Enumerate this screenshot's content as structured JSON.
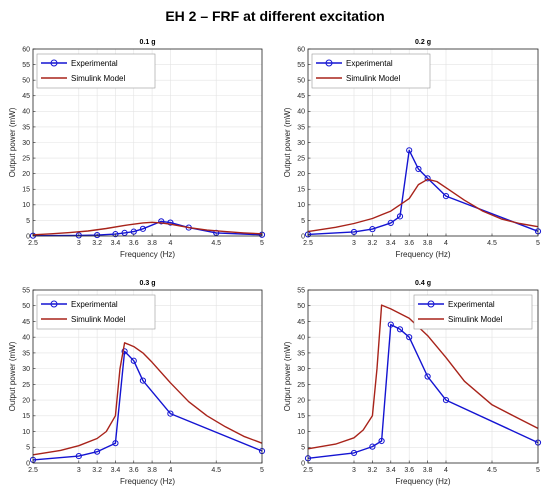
{
  "figure": {
    "title": "EH 2 – FRF at different excitation"
  },
  "colors": {
    "experimental": "#1414d2",
    "simulink": "#a8231a",
    "axis": "#262626",
    "grid": "#e3e3e3",
    "marker_fill": "#ffffff"
  },
  "chart_data": [
    {
      "type": "line",
      "title": "0.1 g",
      "xlabel": "Frequency (Hz)",
      "ylabel": "Output power (mW)",
      "xlim": [
        2.5,
        5
      ],
      "ylim": [
        0,
        60
      ],
      "x_ticks": [
        2.5,
        3,
        3.2,
        3.4,
        3.6,
        3.8,
        4,
        4.5,
        5
      ],
      "x_tick_labels": [
        "2.5",
        "3",
        "3.2",
        "3.4",
        "3.6",
        "3.8",
        "4",
        "4.5",
        "5"
      ],
      "y_ticks": [
        0,
        5,
        10,
        15,
        20,
        25,
        30,
        35,
        40,
        45,
        50,
        55,
        60
      ],
      "y_tick_labels": [
        "0",
        "5",
        "10",
        "15",
        "20",
        "25",
        "30",
        "35",
        "40",
        "45",
        "50",
        "55",
        "60"
      ],
      "grid": true,
      "legend_position": "top-left",
      "series": [
        {
          "name": "Experimental",
          "color": "#1414d2",
          "marker": "circle",
          "x": [
            2.5,
            3.0,
            3.2,
            3.4,
            3.5,
            3.6,
            3.7,
            3.9,
            4.0,
            4.2,
            4.5,
            5.0
          ],
          "y": [
            0.1,
            0.2,
            0.3,
            0.6,
            1.0,
            1.4,
            2.3,
            4.7,
            4.3,
            2.7,
            1.0,
            0.4
          ]
        },
        {
          "name": "Simulink Model",
          "color": "#a8231a",
          "marker": "none",
          "x": [
            2.5,
            2.7,
            2.9,
            3.1,
            3.3,
            3.5,
            3.7,
            3.8,
            3.9,
            4.0,
            4.2,
            4.4,
            4.6,
            4.8,
            5.0
          ],
          "y": [
            0.4,
            0.7,
            1.1,
            1.6,
            2.4,
            3.4,
            4.2,
            4.4,
            4.2,
            3.8,
            2.7,
            1.9,
            1.4,
            1.0,
            0.7
          ]
        }
      ]
    },
    {
      "type": "line",
      "title": "0.2 g",
      "xlabel": "Frequency (Hz)",
      "ylabel": "Output power (mW)",
      "xlim": [
        2.5,
        5
      ],
      "ylim": [
        0,
        60
      ],
      "x_ticks": [
        2.5,
        3,
        3.2,
        3.4,
        3.6,
        3.8,
        4,
        4.5,
        5
      ],
      "x_tick_labels": [
        "2.5",
        "3",
        "3.2",
        "3.4",
        "3.6",
        "3.8",
        "4",
        "4.5",
        "5"
      ],
      "y_ticks": [
        0,
        5,
        10,
        15,
        20,
        25,
        30,
        35,
        40,
        45,
        50,
        55,
        60
      ],
      "y_tick_labels": [
        "0",
        "5",
        "10",
        "15",
        "20",
        "25",
        "30",
        "35",
        "40",
        "45",
        "50",
        "55",
        "60"
      ],
      "grid": true,
      "legend_position": "top-left",
      "series": [
        {
          "name": "Experimental",
          "color": "#1414d2",
          "marker": "circle",
          "x": [
            2.5,
            3.0,
            3.2,
            3.4,
            3.5,
            3.6,
            3.7,
            3.8,
            4.0,
            5.0
          ],
          "y": [
            0.5,
            1.3,
            2.2,
            4.2,
            6.3,
            27.5,
            21.5,
            18.5,
            12.8,
            1.5
          ]
        },
        {
          "name": "Simulink Model",
          "color": "#a8231a",
          "marker": "none",
          "x": [
            2.5,
            2.8,
            3.0,
            3.2,
            3.4,
            3.5,
            3.6,
            3.7,
            3.8,
            3.9,
            4.0,
            4.2,
            4.4,
            4.6,
            4.8,
            5.0
          ],
          "y": [
            1.4,
            2.8,
            4.0,
            5.6,
            8.0,
            10.0,
            12.0,
            16.5,
            18.2,
            17.5,
            15.5,
            11.5,
            8.0,
            5.5,
            4.0,
            3.0
          ]
        }
      ]
    },
    {
      "type": "line",
      "title": "0.3 g",
      "xlabel": "Frequency (Hz)",
      "ylabel": "Output power (mW)",
      "xlim": [
        2.5,
        5
      ],
      "ylim": [
        0,
        55
      ],
      "x_ticks": [
        2.5,
        3,
        3.2,
        3.4,
        3.6,
        3.8,
        4,
        4.5,
        5
      ],
      "x_tick_labels": [
        "2.5",
        "3",
        "3.2",
        "3.4",
        "3.6",
        "3.8",
        "4",
        "4.5",
        "5"
      ],
      "y_ticks": [
        0,
        5,
        10,
        15,
        20,
        25,
        30,
        35,
        40,
        45,
        50,
        55
      ],
      "y_tick_labels": [
        "0",
        "5",
        "10",
        "15",
        "20",
        "25",
        "30",
        "35",
        "40",
        "45",
        "50",
        "55"
      ],
      "grid": true,
      "legend_position": "top-left",
      "series": [
        {
          "name": "Experimental",
          "color": "#1414d2",
          "marker": "circle",
          "x": [
            2.5,
            3.0,
            3.2,
            3.4,
            3.5,
            3.6,
            3.7,
            4.0,
            5.0
          ],
          "y": [
            1.0,
            2.2,
            3.6,
            6.3,
            35.5,
            32.5,
            26.2,
            15.7,
            3.8
          ]
        },
        {
          "name": "Simulink Model",
          "color": "#a8231a",
          "marker": "none",
          "x": [
            2.5,
            2.8,
            3.0,
            3.2,
            3.3,
            3.4,
            3.45,
            3.5,
            3.6,
            3.7,
            3.8,
            4.0,
            4.2,
            4.4,
            4.6,
            4.8,
            5.0
          ],
          "y": [
            2.6,
            4.0,
            5.5,
            7.8,
            10.0,
            15.0,
            30.0,
            38.2,
            37.0,
            35.0,
            32.0,
            25.5,
            19.5,
            15.0,
            11.5,
            8.5,
            6.3
          ]
        }
      ]
    },
    {
      "type": "line",
      "title": "0.4 g",
      "xlabel": "Frequency (Hz)",
      "ylabel": "Output power (mW)",
      "xlim": [
        2.5,
        5
      ],
      "ylim": [
        0,
        55
      ],
      "x_ticks": [
        2.5,
        3,
        3.2,
        3.4,
        3.6,
        3.8,
        4,
        4.5,
        5
      ],
      "x_tick_labels": [
        "2.5",
        "3",
        "3.2",
        "3.4",
        "3.6",
        "3.8",
        "4",
        "4.5",
        "5"
      ],
      "y_ticks": [
        0,
        5,
        10,
        15,
        20,
        25,
        30,
        35,
        40,
        45,
        50,
        55
      ],
      "y_tick_labels": [
        "0",
        "5",
        "10",
        "15",
        "20",
        "25",
        "30",
        "35",
        "40",
        "45",
        "50",
        "55"
      ],
      "grid": true,
      "legend_position": "top-right",
      "series": [
        {
          "name": "Experimental",
          "color": "#1414d2",
          "marker": "circle",
          "x": [
            2.5,
            3.0,
            3.2,
            3.3,
            3.4,
            3.5,
            3.6,
            3.8,
            4.0,
            5.0
          ],
          "y": [
            1.5,
            3.2,
            5.2,
            7.0,
            44.0,
            42.5,
            40.0,
            27.5,
            20.0,
            6.5
          ]
        },
        {
          "name": "Simulink Model",
          "color": "#a8231a",
          "marker": "none",
          "x": [
            2.5,
            2.8,
            3.0,
            3.1,
            3.2,
            3.25,
            3.3,
            3.4,
            3.6,
            3.8,
            4.0,
            4.2,
            4.5,
            4.8,
            5.0
          ],
          "y": [
            4.5,
            6.0,
            8.0,
            10.5,
            15.0,
            30.0,
            50.2,
            49.0,
            46.0,
            40.5,
            33.5,
            26.0,
            18.5,
            14.0,
            11.0
          ]
        }
      ]
    }
  ]
}
